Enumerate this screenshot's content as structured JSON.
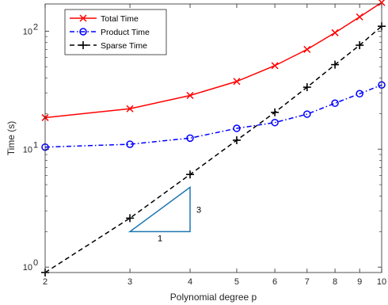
{
  "chart_data": {
    "type": "line",
    "xlabel": "Polynomial degree p",
    "ylabel": "Time (s)",
    "x_scale": "log",
    "y_scale": "log",
    "xlim": [
      2,
      10
    ],
    "ylim": [
      0.9,
      170
    ],
    "x": [
      2,
      3,
      4,
      5,
      6,
      7,
      8,
      9,
      10
    ],
    "x_tick_labels": [
      "2",
      "3",
      "4",
      "5",
      "6",
      "7",
      "8",
      "9",
      "10"
    ],
    "y_ticks": [
      {
        "value": 1,
        "base": "10",
        "exp": "0"
      },
      {
        "value": 10,
        "base": "10",
        "exp": "1"
      },
      {
        "value": 100,
        "base": "10",
        "exp": "2"
      }
    ],
    "legend_position": "top-left",
    "series": [
      {
        "name": "Total Time",
        "color": "#ff0000",
        "dash": "solid",
        "marker": "x",
        "values": [
          18.5,
          22.0,
          28.5,
          37.5,
          51.0,
          70.0,
          97.0,
          132.0,
          175.0
        ]
      },
      {
        "name": "Product Time",
        "color": "#0000ff",
        "dash": "dashdot",
        "marker": "o",
        "values": [
          10.4,
          11.0,
          12.4,
          15.0,
          16.8,
          19.8,
          24.5,
          29.5,
          35.0
        ]
      },
      {
        "name": "Sparse Time",
        "color": "#000000",
        "dash": "dashed",
        "marker": "+",
        "values": [
          0.9,
          2.6,
          6.1,
          11.9,
          20.5,
          33.5,
          52.0,
          76.0,
          110.0
        ]
      }
    ],
    "slope_triangle": {
      "color": "#1f77b4",
      "x": [
        3,
        4
      ],
      "y_low": 2.0,
      "y_high": 4.75,
      "horizontal_label": "1",
      "vertical_label": "3"
    }
  }
}
